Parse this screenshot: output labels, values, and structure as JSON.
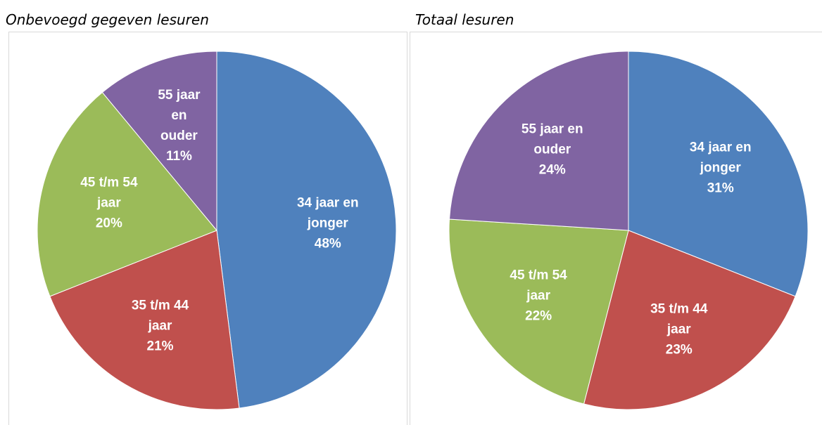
{
  "chart_data": [
    {
      "type": "pie",
      "title": "Onbevoegd gegeven lesuren",
      "categories": [
        "34 jaar en jonger",
        "35 t/m 44 jaar",
        "45 t/m 54 jaar",
        "55 jaar en ouder"
      ],
      "values": [
        48,
        21,
        20,
        11
      ],
      "value_labels": [
        "48%",
        "21%",
        "20%",
        "11%"
      ],
      "colors": [
        "#4f81bd",
        "#c0504d",
        "#9bbb59",
        "#8064a2"
      ]
    },
    {
      "type": "pie",
      "title": "Totaal lesuren",
      "categories": [
        "34 jaar en jonger",
        "35 t/m 44 jaar",
        "45 t/m 54 jaar",
        "55 jaar en ouder"
      ],
      "values": [
        31,
        23,
        22,
        24
      ],
      "value_labels": [
        "31%",
        "23%",
        "22%",
        "24%"
      ],
      "colors": [
        "#4f81bd",
        "#c0504d",
        "#9bbb59",
        "#8064a2"
      ]
    }
  ]
}
